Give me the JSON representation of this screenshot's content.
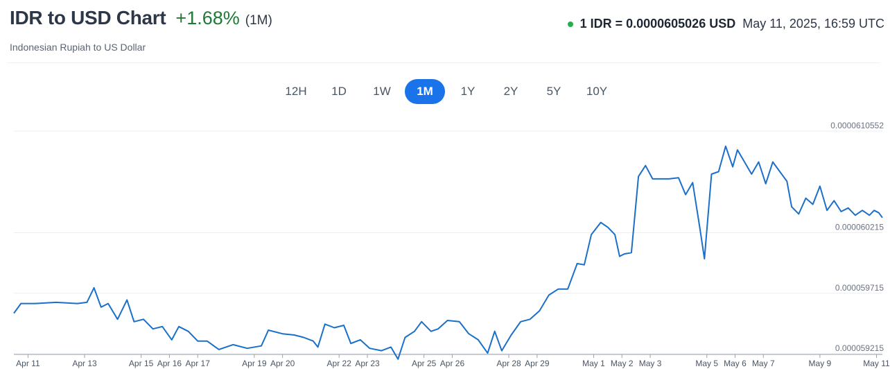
{
  "header": {
    "title": "IDR to USD Chart",
    "change": "+1.68%",
    "change_period": "(1M)",
    "subtitle": "Indonesian Rupiah to US Dollar",
    "rate": "1 IDR = 0.0000605026 USD",
    "timestamp": "May 11, 2025, 16:59 UTC"
  },
  "colors": {
    "line": "#1a6fc9",
    "positive": "#1f7a36",
    "active_tab": "#1a73e8",
    "live": "#22b04b"
  },
  "tabs": [
    {
      "label": "12H",
      "active": false
    },
    {
      "label": "1D",
      "active": false
    },
    {
      "label": "1W",
      "active": false
    },
    {
      "label": "1M",
      "active": true
    },
    {
      "label": "1Y",
      "active": false
    },
    {
      "label": "2Y",
      "active": false
    },
    {
      "label": "5Y",
      "active": false
    },
    {
      "label": "10Y",
      "active": false
    }
  ],
  "chart_data": {
    "type": "line",
    "title": "",
    "xlabel": "",
    "ylabel": "",
    "grid": true,
    "y_axis_position": "right",
    "ylim": [
      5.9215e-05,
      6.10552e-05
    ],
    "y_ticks": [
      {
        "value": 6.10552e-05,
        "label": "0.0000610552"
      },
      {
        "value": 6.0215e-05,
        "label": "0.000060215"
      },
      {
        "value": 5.9715e-05,
        "label": "0.000059715"
      },
      {
        "value": 5.9215e-05,
        "label": "0.000059215"
      }
    ],
    "x_range": [
      "2025-04-11 00:00",
      "2025-05-11 17:00"
    ],
    "x_ticks": [
      {
        "label": "Apr 11",
        "x": "2025-04-11 12:00"
      },
      {
        "label": "Apr 13",
        "x": "2025-04-13 12:00"
      },
      {
        "label": "Apr 15",
        "x": "2025-04-15 12:00"
      },
      {
        "label": "Apr 16",
        "x": "2025-04-16 12:00"
      },
      {
        "label": "Apr 17",
        "x": "2025-04-17 12:00"
      },
      {
        "label": "Apr 19",
        "x": "2025-04-19 12:00"
      },
      {
        "label": "Apr 20",
        "x": "2025-04-20 12:00"
      },
      {
        "label": "Apr 22",
        "x": "2025-04-22 12:00"
      },
      {
        "label": "Apr 23",
        "x": "2025-04-23 12:00"
      },
      {
        "label": "Apr 25",
        "x": "2025-04-25 12:00"
      },
      {
        "label": "Apr 26",
        "x": "2025-04-26 12:00"
      },
      {
        "label": "Apr 28",
        "x": "2025-04-28 12:00"
      },
      {
        "label": "Apr 29",
        "x": "2025-04-29 12:00"
      },
      {
        "label": "May 1",
        "x": "2025-05-01 12:00"
      },
      {
        "label": "May 2",
        "x": "2025-05-02 12:00"
      },
      {
        "label": "May 3",
        "x": "2025-05-03 12:00"
      },
      {
        "label": "May 5",
        "x": "2025-05-05 12:00"
      },
      {
        "label": "May 6",
        "x": "2025-05-06 12:00"
      },
      {
        "label": "May 7",
        "x": "2025-05-07 12:00"
      },
      {
        "label": "May 9",
        "x": "2025-05-09 12:00"
      },
      {
        "label": "May 11",
        "x": "2025-05-11 12:00"
      }
    ],
    "series": [
      {
        "points": [
          [
            "2025-04-11 00:00",
            5.955e-05
          ],
          [
            "2025-04-11 06:00",
            5.963e-05
          ],
          [
            "2025-04-11 18:00",
            5.963e-05
          ],
          [
            "2025-04-12 12:00",
            5.964e-05
          ],
          [
            "2025-04-13 06:00",
            5.963e-05
          ],
          [
            "2025-04-13 14:00",
            5.964e-05
          ],
          [
            "2025-04-13 20:00",
            5.976e-05
          ],
          [
            "2025-04-14 02:00",
            5.96e-05
          ],
          [
            "2025-04-14 08:00",
            5.963e-05
          ],
          [
            "2025-04-14 16:00",
            5.95e-05
          ],
          [
            "2025-04-15 00:00",
            5.966e-05
          ],
          [
            "2025-04-15 06:00",
            5.948e-05
          ],
          [
            "2025-04-15 14:00",
            5.95e-05
          ],
          [
            "2025-04-15 22:00",
            5.942e-05
          ],
          [
            "2025-04-16 06:00",
            5.944e-05
          ],
          [
            "2025-04-16 14:00",
            5.933e-05
          ],
          [
            "2025-04-16 20:00",
            5.944e-05
          ],
          [
            "2025-04-17 04:00",
            5.94e-05
          ],
          [
            "2025-04-17 12:00",
            5.932e-05
          ],
          [
            "2025-04-17 20:00",
            5.932e-05
          ],
          [
            "2025-04-18 06:00",
            5.925e-05
          ],
          [
            "2025-04-18 18:00",
            5.929e-05
          ],
          [
            "2025-04-19 06:00",
            5.926e-05
          ],
          [
            "2025-04-19 18:00",
            5.928e-05
          ],
          [
            "2025-04-20 00:00",
            5.941e-05
          ],
          [
            "2025-04-20 12:00",
            5.938e-05
          ],
          [
            "2025-04-20 22:00",
            5.937e-05
          ],
          [
            "2025-04-21 06:00",
            5.935e-05
          ],
          [
            "2025-04-21 14:00",
            5.932e-05
          ],
          [
            "2025-04-21 18:00",
            5.927e-05
          ],
          [
            "2025-04-22 00:00",
            5.946e-05
          ],
          [
            "2025-04-22 08:00",
            5.943e-05
          ],
          [
            "2025-04-22 16:00",
            5.945e-05
          ],
          [
            "2025-04-22 22:00",
            5.93e-05
          ],
          [
            "2025-04-23 06:00",
            5.933e-05
          ],
          [
            "2025-04-23 14:00",
            5.926e-05
          ],
          [
            "2025-04-24 00:00",
            5.924e-05
          ],
          [
            "2025-04-24 08:00",
            5.927e-05
          ],
          [
            "2025-04-24 14:00",
            5.917e-05
          ],
          [
            "2025-04-24 20:00",
            5.935e-05
          ],
          [
            "2025-04-25 04:00",
            5.94e-05
          ],
          [
            "2025-04-25 10:00",
            5.948e-05
          ],
          [
            "2025-04-25 18:00",
            5.94e-05
          ],
          [
            "2025-04-26 00:00",
            5.942e-05
          ],
          [
            "2025-04-26 08:00",
            5.949e-05
          ],
          [
            "2025-04-26 18:00",
            5.948e-05
          ],
          [
            "2025-04-27 02:00",
            5.938e-05
          ],
          [
            "2025-04-27 10:00",
            5.933e-05
          ],
          [
            "2025-04-27 18:00",
            5.922e-05
          ],
          [
            "2025-04-28 00:00",
            5.94e-05
          ],
          [
            "2025-04-28 06:00",
            5.924e-05
          ],
          [
            "2025-04-28 14:00",
            5.937e-05
          ],
          [
            "2025-04-28 22:00",
            5.948e-05
          ],
          [
            "2025-04-29 06:00",
            5.95e-05
          ],
          [
            "2025-04-29 14:00",
            5.957e-05
          ],
          [
            "2025-04-29 22:00",
            5.97e-05
          ],
          [
            "2025-04-30 06:00",
            5.975e-05
          ],
          [
            "2025-04-30 14:00",
            5.975e-05
          ],
          [
            "2025-04-30 22:00",
            5.996e-05
          ],
          [
            "2025-05-01 04:00",
            5.995e-05
          ],
          [
            "2025-05-01 10:00",
            6.02e-05
          ],
          [
            "2025-05-01 18:00",
            6.03e-05
          ],
          [
            "2025-05-02 00:00",
            6.026e-05
          ],
          [
            "2025-05-02 06:00",
            6.02e-05
          ],
          [
            "2025-05-02 10:00",
            6.002e-05
          ],
          [
            "2025-05-02 14:00",
            6.004e-05
          ],
          [
            "2025-05-02 20:00",
            6.005e-05
          ],
          [
            "2025-05-03 02:00",
            6.068e-05
          ],
          [
            "2025-05-03 08:00",
            6.077e-05
          ],
          [
            "2025-05-03 14:00",
            6.066e-05
          ],
          [
            "2025-05-03 20:00",
            6.066e-05
          ],
          [
            "2025-05-04 04:00",
            6.066e-05
          ],
          [
            "2025-05-04 12:00",
            6.067e-05
          ],
          [
            "2025-05-04 18:00",
            6.053e-05
          ],
          [
            "2025-05-05 00:00",
            6.063e-05
          ],
          [
            "2025-05-05 06:00",
            6.026e-05
          ],
          [
            "2025-05-05 10:00",
            6e-05
          ],
          [
            "2025-05-05 16:00",
            6.07e-05
          ],
          [
            "2025-05-05 22:00",
            6.072e-05
          ],
          [
            "2025-05-06 04:00",
            6.093e-05
          ],
          [
            "2025-05-06 10:00",
            6.076e-05
          ],
          [
            "2025-05-06 14:00",
            6.09e-05
          ],
          [
            "2025-05-06 20:00",
            6.08e-05
          ],
          [
            "2025-05-07 02:00",
            6.07e-05
          ],
          [
            "2025-05-07 08:00",
            6.08e-05
          ],
          [
            "2025-05-07 14:00",
            6.062e-05
          ],
          [
            "2025-05-07 20:00",
            6.08e-05
          ],
          [
            "2025-05-08 02:00",
            6.072e-05
          ],
          [
            "2025-05-08 08:00",
            6.064e-05
          ],
          [
            "2025-05-08 12:00",
            6.043e-05
          ],
          [
            "2025-05-08 18:00",
            6.037e-05
          ],
          [
            "2025-05-09 00:00",
            6.05e-05
          ],
          [
            "2025-05-09 06:00",
            6.045e-05
          ],
          [
            "2025-05-09 12:00",
            6.06e-05
          ],
          [
            "2025-05-09 18:00",
            6.04e-05
          ],
          [
            "2025-05-10 00:00",
            6.048e-05
          ],
          [
            "2025-05-10 06:00",
            6.039e-05
          ],
          [
            "2025-05-10 12:00",
            6.042e-05
          ],
          [
            "2025-05-10 18:00",
            6.036e-05
          ],
          [
            "2025-05-11 00:00",
            6.04e-05
          ],
          [
            "2025-05-11 06:00",
            6.036e-05
          ],
          [
            "2025-05-11 10:00",
            6.04e-05
          ],
          [
            "2025-05-11 14:00",
            6.038e-05
          ],
          [
            "2025-05-11 17:00",
            6.034e-05
          ]
        ]
      }
    ]
  }
}
